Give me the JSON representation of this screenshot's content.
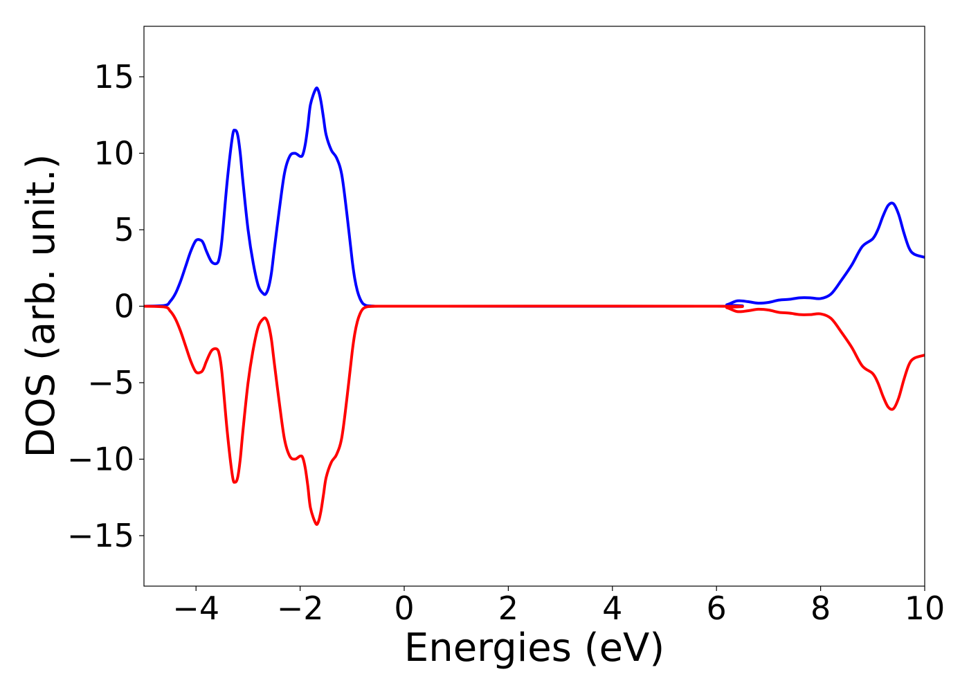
{
  "chart_data": {
    "type": "line",
    "title": "",
    "xlabel": "Energies (eV)",
    "ylabel": "DOS (arb. unit.)",
    "xlim": [
      -5,
      10
    ],
    "ylim": [
      -18.3,
      18.3
    ],
    "xticks": [
      -4,
      -2,
      0,
      2,
      4,
      6,
      8,
      10
    ],
    "xtick_labels": [
      "−4",
      "−2",
      "0",
      "2",
      "4",
      "6",
      "8",
      "10"
    ],
    "yticks": [
      15,
      10,
      5,
      0,
      -5,
      -10,
      -15
    ],
    "ytick_labels": [
      "15",
      "10",
      "5",
      "0",
      "−5",
      "−10",
      "−15"
    ],
    "grid": false,
    "legend": "none",
    "series": [
      {
        "color": "#0000ff",
        "x": [
          -5.0,
          -4.6,
          -4.5,
          -4.4,
          -4.3,
          -4.2,
          -4.1,
          -4.0,
          -3.9,
          -3.85,
          -3.8,
          -3.7,
          -3.6,
          -3.55,
          -3.5,
          -3.4,
          -3.3,
          -3.25,
          -3.2,
          -3.15,
          -3.1,
          -3.0,
          -2.9,
          -2.8,
          -2.7,
          -2.65,
          -2.6,
          -2.55,
          -2.5,
          -2.4,
          -2.3,
          -2.2,
          -2.1,
          -2.0,
          -1.95,
          -1.9,
          -1.85,
          -1.8,
          -1.7,
          -1.65,
          -1.6,
          -1.55,
          -1.5,
          -1.4,
          -1.3,
          -1.2,
          -1.1,
          -1.0,
          -0.95,
          -0.9,
          -0.85,
          -0.8,
          -0.75,
          -0.7,
          -0.6,
          -0.5,
          0.0,
          6.0,
          6.2,
          6.4,
          6.6,
          6.8,
          7.0,
          7.2,
          7.4,
          7.6,
          7.8,
          8.0,
          8.2,
          8.4,
          8.6,
          8.8,
          9.0,
          9.1,
          9.2,
          9.3,
          9.4,
          9.5,
          9.6,
          9.7,
          9.8,
          10.0
        ],
        "y": [
          0.0,
          0.05,
          0.3,
          0.8,
          1.6,
          2.6,
          3.6,
          4.3,
          4.3,
          4.05,
          3.6,
          2.9,
          2.8,
          3.2,
          4.4,
          8.2,
          11.1,
          11.5,
          11.2,
          10.0,
          8.2,
          5.0,
          2.8,
          1.3,
          0.8,
          0.85,
          1.3,
          2.2,
          3.6,
          6.3,
          8.7,
          9.8,
          10.0,
          9.8,
          9.9,
          10.6,
          11.8,
          13.2,
          14.2,
          14.1,
          13.4,
          12.3,
          11.2,
          10.2,
          9.7,
          8.6,
          6.0,
          3.0,
          1.8,
          1.0,
          0.5,
          0.2,
          0.08,
          0.03,
          0.01,
          0.0,
          0.0,
          0.0,
          0.1,
          0.35,
          0.3,
          0.2,
          0.25,
          0.4,
          0.45,
          0.55,
          0.55,
          0.5,
          0.8,
          1.7,
          2.7,
          3.9,
          4.4,
          5.0,
          5.9,
          6.6,
          6.7,
          6.0,
          4.8,
          3.8,
          3.4,
          3.2
        ]
      },
      {
        "color": "#ff0000",
        "x": [
          -5.0,
          -4.6,
          -4.5,
          -4.4,
          -4.3,
          -4.2,
          -4.1,
          -4.0,
          -3.9,
          -3.85,
          -3.8,
          -3.7,
          -3.6,
          -3.55,
          -3.5,
          -3.4,
          -3.3,
          -3.25,
          -3.2,
          -3.15,
          -3.1,
          -3.0,
          -2.9,
          -2.8,
          -2.7,
          -2.65,
          -2.6,
          -2.55,
          -2.5,
          -2.4,
          -2.3,
          -2.2,
          -2.1,
          -2.0,
          -1.95,
          -1.9,
          -1.85,
          -1.8,
          -1.7,
          -1.65,
          -1.6,
          -1.55,
          -1.5,
          -1.4,
          -1.3,
          -1.2,
          -1.1,
          -1.0,
          -0.95,
          -0.9,
          -0.85,
          -0.8,
          -0.75,
          -0.7,
          -0.6,
          -0.5,
          0.0,
          6.0,
          6.2,
          6.4,
          6.6,
          6.8,
          7.0,
          7.2,
          7.4,
          7.6,
          7.8,
          8.0,
          8.2,
          8.4,
          8.6,
          8.8,
          9.0,
          9.1,
          9.2,
          9.3,
          9.4,
          9.5,
          9.6,
          9.7,
          9.8,
          10.0
        ],
        "y": [
          0.0,
          -0.05,
          -0.3,
          -0.8,
          -1.6,
          -2.6,
          -3.6,
          -4.3,
          -4.3,
          -4.05,
          -3.6,
          -2.9,
          -2.8,
          -3.2,
          -4.4,
          -8.2,
          -11.1,
          -11.5,
          -11.2,
          -10.0,
          -8.2,
          -5.0,
          -2.8,
          -1.3,
          -0.8,
          -0.85,
          -1.3,
          -2.2,
          -3.6,
          -6.3,
          -8.7,
          -9.8,
          -10.0,
          -9.8,
          -9.9,
          -10.6,
          -11.8,
          -13.2,
          -14.2,
          -14.1,
          -13.4,
          -12.3,
          -11.2,
          -10.2,
          -9.7,
          -8.6,
          -6.0,
          -3.0,
          -1.8,
          -1.0,
          -0.5,
          -0.2,
          -0.08,
          -0.03,
          -0.01,
          0.0,
          0.0,
          0.0,
          -0.1,
          -0.35,
          -0.3,
          -0.2,
          -0.25,
          -0.4,
          -0.45,
          -0.55,
          -0.55,
          -0.5,
          -0.8,
          -1.7,
          -2.7,
          -3.9,
          -4.4,
          -5.0,
          -5.9,
          -6.6,
          -6.7,
          -6.0,
          -4.8,
          -3.8,
          -3.4,
          -3.2
        ]
      }
    ]
  }
}
